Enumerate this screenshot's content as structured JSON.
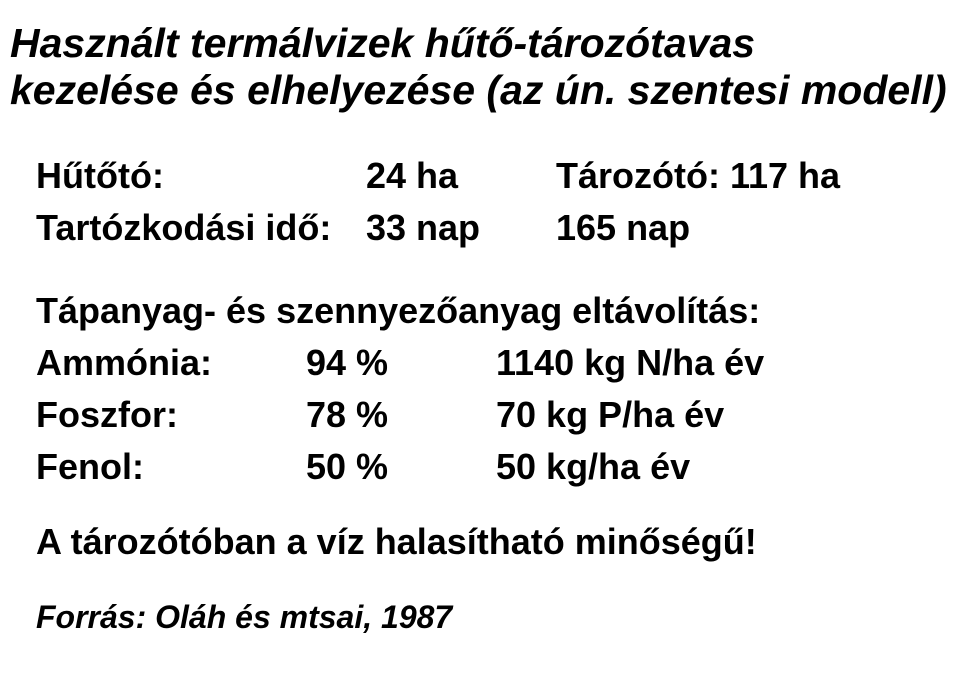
{
  "title_line1": "Használt termálvizek hűtő-tározótavas",
  "title_line2": "kezelése és elhelyezése (az ún. szentesi modell)",
  "section1": {
    "rows": [
      {
        "label": "Hűtőtó:",
        "left": "24 ha",
        "right": "Tározótó: 117 ha"
      },
      {
        "label": "Tartózkodási idő:",
        "left": "33 nap",
        "right": "165 nap"
      }
    ]
  },
  "section2_heading": "Tápanyag- és szennyezőanyag eltávolítás",
  "section2": {
    "rows": [
      {
        "label": "Ammónia:",
        "pct": "94 %",
        "right": "1140 kg N/ha év"
      },
      {
        "label": "Foszfor:",
        "pct": "78 %",
        "right": "70 kg P/ha év"
      },
      {
        "label": "Fenol:",
        "pct": "50 %",
        "right": "50 kg/ha év"
      }
    ]
  },
  "footer": "A tározótóban a víz halasítható minőségű!",
  "source": "Forrás: Oláh és mtsai, 1987"
}
